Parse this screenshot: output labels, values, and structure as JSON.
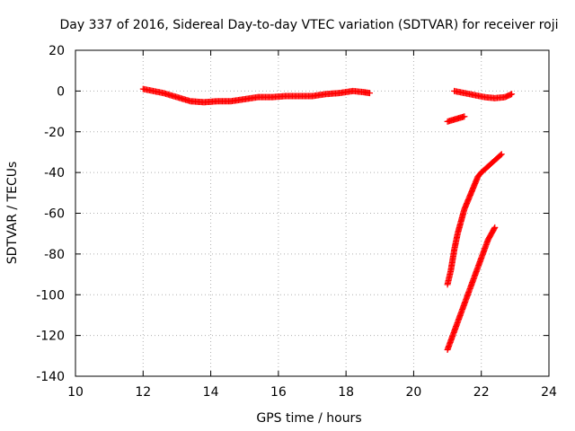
{
  "chart_data": {
    "type": "scatter",
    "title": "Day 337 of 2016, Sidereal Day-to-day VTEC variation (SDTVAR) for receiver roji",
    "xlabel": "GPS time / hours",
    "ylabel": "SDTVAR / TECUs",
    "xlim": [
      10,
      24
    ],
    "ylim": [
      -140,
      20
    ],
    "xticks": [
      10,
      12,
      14,
      16,
      18,
      20,
      22,
      24
    ],
    "yticks": [
      20,
      0,
      -20,
      -40,
      -60,
      -80,
      -100,
      -120,
      -140
    ],
    "grid": true,
    "marker": "plus",
    "color": "#ff0000",
    "series": [
      {
        "x": [
          12.0,
          12.3,
          12.6,
          13.0,
          13.4,
          13.8,
          14.2,
          14.6,
          15.0,
          15.4,
          15.8,
          16.2,
          16.6,
          17.0,
          17.4,
          17.8,
          18.2,
          18.5,
          18.7
        ],
        "y": [
          1,
          0,
          -1,
          -3,
          -5,
          -5.5,
          -5,
          -5,
          -4,
          -3,
          -3,
          -2.5,
          -2.5,
          -2.5,
          -1.5,
          -1,
          0,
          -0.5,
          -1
        ]
      },
      {
        "x": [
          21.2,
          21.5,
          21.8,
          22.1,
          22.4,
          22.7,
          22.9
        ],
        "y": [
          0,
          -1,
          -2,
          -3,
          -3.5,
          -3,
          -1.5
        ]
      },
      {
        "x": [
          21.0,
          21.2,
          21.4,
          21.5
        ],
        "y": [
          -15,
          -14,
          -13,
          -12.5
        ]
      },
      {
        "x": [
          21.0,
          21.1,
          21.2,
          21.3,
          21.4,
          21.5,
          21.6,
          21.7,
          21.8,
          21.9,
          22.0,
          22.2,
          22.4,
          22.6
        ],
        "y": [
          -95,
          -88,
          -78,
          -70,
          -64,
          -58,
          -54,
          -50,
          -46,
          -42,
          -40,
          -37,
          -34,
          -31
        ]
      },
      {
        "x": [
          21.0,
          21.2,
          21.4,
          21.6,
          21.8,
          22.0,
          22.2,
          22.4
        ],
        "y": [
          -127,
          -118,
          -109,
          -100,
          -91,
          -82,
          -73,
          -67
        ]
      }
    ]
  }
}
